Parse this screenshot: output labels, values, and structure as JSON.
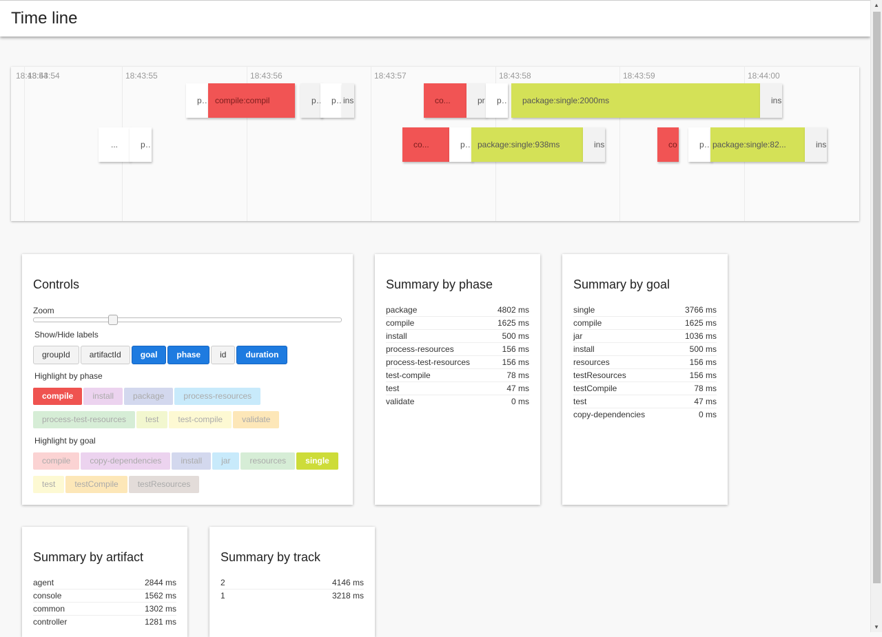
{
  "header": {
    "title": "Time line"
  },
  "timeline": {
    "ticks": [
      {
        "label": "18:43:54"
      },
      {
        "label": "18:43:55"
      },
      {
        "label": "18:43:56"
      },
      {
        "label": "18:43:57"
      },
      {
        "label": "18:43:58"
      },
      {
        "label": "18:43:59"
      },
      {
        "label": "18:44:00"
      }
    ],
    "overlap_label": "18:43:54",
    "bars": {
      "t1a": "pro",
      "t1b": "compile:compil",
      "t1c": "pac",
      "t1d": "pac",
      "t1e": "ins",
      "t1f": "co...",
      "t1g": "pr",
      "t1h": "pac",
      "t1i": "package:single:2000ms",
      "t1j": "ins",
      "t2a": "...",
      "t2b": "pac",
      "t2c": "co...",
      "t2d": "pac",
      "t2e": "package:single:938ms",
      "t2f": "ins",
      "t2g": "co",
      "t2h": "pac",
      "t2i": "package:single:82...",
      "t2j": "ins"
    }
  },
  "colors": {
    "compile": "#f15454",
    "single": "#d4e157",
    "accent": "#1e7be0"
  },
  "controls": {
    "title": "Controls",
    "zoom_label": "Zoom",
    "zoom_level": 0.25,
    "show_hide_label": "Show/Hide labels",
    "label_buttons": [
      {
        "label": "groupId",
        "on": false
      },
      {
        "label": "artifactId",
        "on": false
      },
      {
        "label": "goal",
        "on": true
      },
      {
        "label": "phase",
        "on": true
      },
      {
        "label": "id",
        "on": false
      },
      {
        "label": "duration",
        "on": true
      }
    ],
    "highlight_phase_label": "Highlight by phase",
    "phase_chips": [
      {
        "label": "compile",
        "color": "#ef5350",
        "on": true
      },
      {
        "label": "install",
        "color": "#ecd3ef",
        "on": false
      },
      {
        "label": "package",
        "color": "#d3d8ee",
        "on": false
      },
      {
        "label": "process-resources",
        "color": "#c8eafb",
        "on": false
      },
      {
        "label": "process-test-resources",
        "color": "#d6edd6",
        "on": false
      },
      {
        "label": "test",
        "color": "#f2f7cf",
        "on": false
      },
      {
        "label": "test-compile",
        "color": "#fdf9d3",
        "on": false
      },
      {
        "label": "validate",
        "color": "#fde7b8",
        "on": false
      }
    ],
    "highlight_goal_label": "Highlight by goal",
    "goal_chips": [
      {
        "label": "compile",
        "color": "#fbd3d3",
        "on": false
      },
      {
        "label": "copy-dependencies",
        "color": "#ecd3ef",
        "on": false
      },
      {
        "label": "install",
        "color": "#d3d8ee",
        "on": false
      },
      {
        "label": "jar",
        "color": "#c8eafb",
        "on": false
      },
      {
        "label": "resources",
        "color": "#d6edd6",
        "on": false
      },
      {
        "label": "single",
        "color": "#cddc39",
        "on": true
      },
      {
        "label": "test",
        "color": "#fdf9d3",
        "on": false
      },
      {
        "label": "testCompile",
        "color": "#fde7b8",
        "on": false
      },
      {
        "label": "testResources",
        "color": "#e3dcd9",
        "on": false
      }
    ]
  },
  "summary_phase": {
    "title": "Summary by phase",
    "rows": [
      {
        "name": "package",
        "value": "4802 ms"
      },
      {
        "name": "compile",
        "value": "1625 ms"
      },
      {
        "name": "install",
        "value": "500 ms"
      },
      {
        "name": "process-resources",
        "value": "156 ms"
      },
      {
        "name": "process-test-resources",
        "value": "156 ms"
      },
      {
        "name": "test-compile",
        "value": "78 ms"
      },
      {
        "name": "test",
        "value": "47 ms"
      },
      {
        "name": "validate",
        "value": "0 ms"
      }
    ]
  },
  "summary_goal": {
    "title": "Summary by goal",
    "rows": [
      {
        "name": "single",
        "value": "3766 ms"
      },
      {
        "name": "compile",
        "value": "1625 ms"
      },
      {
        "name": "jar",
        "value": "1036 ms"
      },
      {
        "name": "install",
        "value": "500 ms"
      },
      {
        "name": "resources",
        "value": "156 ms"
      },
      {
        "name": "testResources",
        "value": "156 ms"
      },
      {
        "name": "testCompile",
        "value": "78 ms"
      },
      {
        "name": "test",
        "value": "47 ms"
      },
      {
        "name": "copy-dependencies",
        "value": "0 ms"
      }
    ]
  },
  "summary_artifact": {
    "title": "Summary by artifact",
    "rows": [
      {
        "name": "agent",
        "value": "2844 ms"
      },
      {
        "name": "console",
        "value": "1562 ms"
      },
      {
        "name": "common",
        "value": "1302 ms"
      },
      {
        "name": "controller",
        "value": "1281 ms"
      }
    ]
  },
  "summary_track": {
    "title": "Summary by track",
    "rows": [
      {
        "name": "2",
        "value": "4146 ms"
      },
      {
        "name": "1",
        "value": "3218 ms"
      }
    ]
  }
}
